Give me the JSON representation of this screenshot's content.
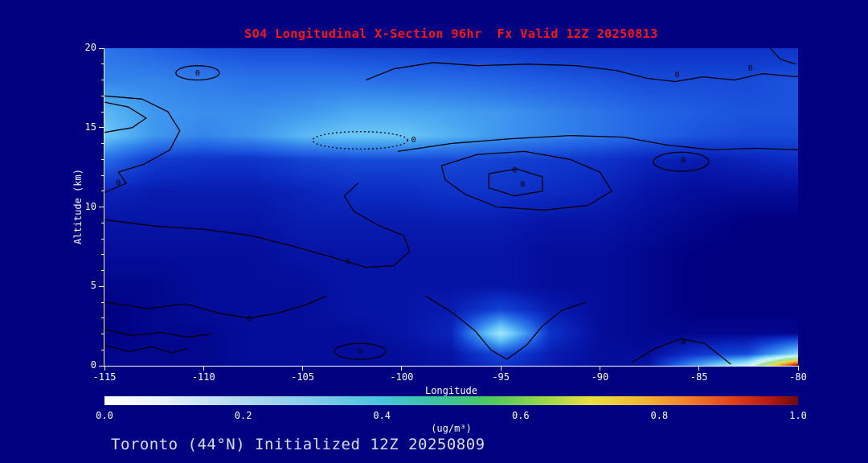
{
  "page": {
    "background": "#000080",
    "footer": "Toronto (44°N) Initialized 12Z 20250809",
    "footer_color": "#dcdcf8"
  },
  "chart_data": {
    "type": "heatmap",
    "title": "SO4 Longitudinal X-Section 96hr  Fx Valid 12Z 20250813",
    "title_color": "#ff1414",
    "xlabel": "Longitude",
    "ylabel": "Altitude (km)",
    "units": "(ug/m³)",
    "xlim": [
      -115,
      -80
    ],
    "ylim": [
      0,
      20
    ],
    "x_ticks": [
      -115,
      -110,
      -105,
      -100,
      -95,
      -90,
      -85,
      -80
    ],
    "y_ticks": [
      0,
      5,
      10,
      15,
      20
    ],
    "grid": false,
    "legend_position": "bottom-colorbar",
    "contour_label": "0",
    "contour_color": "#000000",
    "grid_lons": [
      -115,
      -112.5,
      -110,
      -107.5,
      -105,
      -102.5,
      -100,
      -97.5,
      -95,
      -92.5,
      -90,
      -87.5,
      -85,
      -82.5,
      -80
    ],
    "grid_alts": [
      0,
      0.7,
      2,
      3.5,
      5,
      7,
      9,
      11,
      13,
      14.5,
      16,
      18,
      20
    ],
    "values": [
      [
        0.07,
        0.07,
        0.07,
        0.08,
        0.08,
        0.08,
        0.08,
        0.09,
        0.13,
        0.1,
        0.08,
        0.09,
        0.26,
        0.42,
        0.96
      ],
      [
        0.07,
        0.07,
        0.07,
        0.08,
        0.08,
        0.08,
        0.08,
        0.09,
        0.16,
        0.1,
        0.08,
        0.08,
        0.13,
        0.16,
        0.34
      ],
      [
        0.06,
        0.07,
        0.07,
        0.08,
        0.08,
        0.08,
        0.09,
        0.11,
        0.38,
        0.13,
        0.08,
        0.07,
        0.07,
        0.07,
        0.07
      ],
      [
        0.06,
        0.07,
        0.08,
        0.08,
        0.08,
        0.09,
        0.09,
        0.1,
        0.15,
        0.1,
        0.08,
        0.07,
        0.06,
        0.06,
        0.06
      ],
      [
        0.07,
        0.07,
        0.08,
        0.08,
        0.08,
        0.09,
        0.09,
        0.09,
        0.09,
        0.08,
        0.08,
        0.07,
        0.06,
        0.06,
        0.06
      ],
      [
        0.08,
        0.08,
        0.08,
        0.08,
        0.09,
        0.09,
        0.09,
        0.09,
        0.09,
        0.08,
        0.08,
        0.07,
        0.06,
        0.06,
        0.06
      ],
      [
        0.09,
        0.09,
        0.09,
        0.09,
        0.1,
        0.1,
        0.1,
        0.1,
        0.1,
        0.09,
        0.09,
        0.08,
        0.07,
        0.06,
        0.06
      ],
      [
        0.11,
        0.1,
        0.1,
        0.1,
        0.11,
        0.12,
        0.12,
        0.13,
        0.13,
        0.12,
        0.11,
        0.09,
        0.08,
        0.08,
        0.08
      ],
      [
        0.2,
        0.14,
        0.13,
        0.13,
        0.15,
        0.16,
        0.16,
        0.16,
        0.15,
        0.14,
        0.13,
        0.11,
        0.1,
        0.11,
        0.12
      ],
      [
        0.31,
        0.25,
        0.23,
        0.25,
        0.29,
        0.31,
        0.31,
        0.28,
        0.25,
        0.23,
        0.21,
        0.19,
        0.17,
        0.16,
        0.16
      ],
      [
        0.29,
        0.25,
        0.24,
        0.24,
        0.25,
        0.27,
        0.27,
        0.26,
        0.25,
        0.23,
        0.21,
        0.19,
        0.18,
        0.17,
        0.17
      ],
      [
        0.23,
        0.23,
        0.22,
        0.21,
        0.21,
        0.21,
        0.2,
        0.2,
        0.19,
        0.18,
        0.17,
        0.16,
        0.16,
        0.16,
        0.17
      ],
      [
        0.21,
        0.19,
        0.17,
        0.16,
        0.16,
        0.15,
        0.15,
        0.14,
        0.14,
        0.13,
        0.13,
        0.13,
        0.13,
        0.13,
        0.13
      ]
    ],
    "fill_colormap": [
      [
        0.0,
        "#000074"
      ],
      [
        0.06,
        "#000080"
      ],
      [
        0.09,
        "#0614a6"
      ],
      [
        0.12,
        "#0c2cc4"
      ],
      [
        0.15,
        "#1342d2"
      ],
      [
        0.18,
        "#1f5ce2"
      ],
      [
        0.22,
        "#2f7cea"
      ],
      [
        0.26,
        "#45a0f0"
      ],
      [
        0.3,
        "#63c0f6"
      ],
      [
        0.35,
        "#8cdafa"
      ],
      [
        0.4,
        "#b4eefc"
      ],
      [
        0.48,
        "#d8f8ee"
      ],
      [
        0.56,
        "#8ee098"
      ],
      [
        0.66,
        "#dce856"
      ],
      [
        0.76,
        "#f2b436"
      ],
      [
        0.86,
        "#e65c22"
      ],
      [
        0.93,
        "#c62212"
      ],
      [
        1.0,
        "#6e0e08"
      ]
    ],
    "contours": [
      {
        "name": "upper-right-wave",
        "points": [
          [
            -101.8,
            18.0
          ],
          [
            -100.4,
            18.7
          ],
          [
            -98.4,
            19.1
          ],
          [
            -96.2,
            18.9
          ],
          [
            -93.6,
            19.0
          ],
          [
            -91.2,
            18.9
          ],
          [
            -89.2,
            18.6
          ],
          [
            -87.6,
            18.1
          ],
          [
            -86.2,
            17.9
          ],
          [
            -84.8,
            18.2
          ],
          [
            -83.2,
            18.0
          ],
          [
            -81.8,
            18.4
          ],
          [
            -80.0,
            18.2
          ]
        ],
        "labels": [
          [
            -86.1,
            18.35
          ],
          [
            -82.4,
            18.75
          ]
        ]
      },
      {
        "name": "top-right-corner",
        "points": [
          [
            -81.4,
            20.0
          ],
          [
            -80.9,
            19.3
          ],
          [
            -80.1,
            19.0
          ]
        ]
      },
      {
        "name": "upper-left-oval",
        "ellipse": [
          -110.3,
          18.45,
          1.1,
          0.45
        ],
        "labels": [
          [
            -110.3,
            18.45
          ]
        ]
      },
      {
        "name": "left-notch",
        "points": [
          [
            -115,
            16.6
          ],
          [
            -113.8,
            16.3
          ],
          [
            -112.9,
            15.6
          ],
          [
            -113.6,
            15.0
          ],
          [
            -115,
            14.7
          ]
        ]
      },
      {
        "name": "left-vertical",
        "points": [
          [
            -115,
            10.9
          ],
          [
            -113.9,
            11.5
          ],
          [
            -114.3,
            12.2
          ],
          [
            -113.0,
            12.7
          ],
          [
            -111.7,
            13.6
          ],
          [
            -111.2,
            14.8
          ],
          [
            -111.8,
            16.0
          ],
          [
            -113.1,
            16.8
          ],
          [
            -115,
            17.0
          ]
        ],
        "labels": [
          [
            -114.3,
            11.55
          ]
        ]
      },
      {
        "name": "band-dashed",
        "ellipse": [
          -102.1,
          14.2,
          2.4,
          0.55
        ],
        "dashed": true,
        "labels": [
          [
            -99.4,
            14.25
          ]
        ]
      },
      {
        "name": "band-edge-right",
        "points": [
          [
            -100.2,
            13.5
          ],
          [
            -97.5,
            14.0
          ],
          [
            -94.5,
            14.3
          ],
          [
            -91.5,
            14.5
          ],
          [
            -88.8,
            14.4
          ],
          [
            -86.6,
            13.9
          ],
          [
            -84.3,
            13.6
          ],
          [
            -82.2,
            13.7
          ],
          [
            -80,
            13.6
          ]
        ]
      },
      {
        "name": "right-small-oval",
        "ellipse": [
          -85.9,
          12.85,
          1.4,
          0.6
        ],
        "labels": [
          [
            -85.8,
            12.95
          ]
        ]
      },
      {
        "name": "big-mid-loop",
        "closed": true,
        "points": [
          [
            -98.0,
            12.6
          ],
          [
            -96.2,
            13.3
          ],
          [
            -93.8,
            13.5
          ],
          [
            -91.5,
            13.0
          ],
          [
            -90.0,
            12.2
          ],
          [
            -89.4,
            11.0
          ],
          [
            -90.6,
            10.1
          ],
          [
            -92.8,
            9.8
          ],
          [
            -95.2,
            10.0
          ],
          [
            -96.8,
            10.8
          ],
          [
            -97.8,
            11.7
          ]
        ],
        "labels": [
          [
            -94.3,
            12.35
          ]
        ]
      },
      {
        "name": "inner-loop",
        "closed": true,
        "points": [
          [
            -95.6,
            12.1
          ],
          [
            -94.2,
            12.4
          ],
          [
            -92.9,
            11.9
          ],
          [
            -92.9,
            11.0
          ],
          [
            -94.3,
            10.7
          ],
          [
            -95.6,
            11.2
          ]
        ],
        "labels": [
          [
            -93.9,
            11.45
          ]
        ]
      },
      {
        "name": "mid-squiggle",
        "points": [
          [
            -115,
            9.2
          ],
          [
            -112.5,
            8.8
          ],
          [
            -110.0,
            8.6
          ],
          [
            -107.6,
            8.2
          ],
          [
            -105.4,
            7.5
          ],
          [
            -103.4,
            6.8
          ],
          [
            -101.8,
            6.2
          ],
          [
            -100.4,
            6.3
          ],
          [
            -99.6,
            7.2
          ],
          [
            -99.9,
            8.2
          ],
          [
            -101.1,
            8.8
          ],
          [
            -102.4,
            9.7
          ],
          [
            -102.9,
            10.7
          ],
          [
            -102.2,
            11.5
          ]
        ],
        "labels": [
          [
            -102.7,
            6.55
          ]
        ]
      },
      {
        "name": "low-left-line",
        "points": [
          [
            -115,
            4.0
          ],
          [
            -112.8,
            3.6
          ],
          [
            -110.9,
            3.9
          ],
          [
            -109.2,
            3.3
          ],
          [
            -107.7,
            3.0
          ],
          [
            -106.3,
            3.3
          ],
          [
            -104.9,
            3.8
          ],
          [
            -103.8,
            4.4
          ]
        ],
        "labels": [
          [
            -107.7,
            2.95
          ]
        ]
      },
      {
        "name": "low-left-line2",
        "points": [
          [
            -115,
            2.3
          ],
          [
            -113.6,
            1.9
          ],
          [
            -112.2,
            2.1
          ],
          [
            -110.8,
            1.8
          ],
          [
            -109.6,
            2.0
          ]
        ]
      },
      {
        "name": "bottom-left-squiggle",
        "points": [
          [
            -115,
            1.3
          ],
          [
            -113.8,
            0.9
          ],
          [
            -112.6,
            1.2
          ],
          [
            -111.6,
            0.8
          ],
          [
            -110.8,
            1.1
          ]
        ]
      },
      {
        "name": "low-oval",
        "ellipse": [
          -102.1,
          0.9,
          1.3,
          0.5
        ],
        "labels": [
          [
            -102.1,
            0.9
          ]
        ]
      },
      {
        "name": "spot-v",
        "points": [
          [
            -98.8,
            4.4
          ],
          [
            -97.4,
            3.3
          ],
          [
            -96.3,
            2.2
          ],
          [
            -95.5,
            1.0
          ],
          [
            -94.7,
            0.4
          ],
          [
            -93.7,
            1.3
          ],
          [
            -92.9,
            2.5
          ],
          [
            -91.9,
            3.5
          ],
          [
            -90.7,
            4.0
          ]
        ]
      },
      {
        "name": "bottom-right-bump",
        "points": [
          [
            -88.4,
            0.2
          ],
          [
            -87.2,
            1.1
          ],
          [
            -85.9,
            1.7
          ],
          [
            -84.7,
            1.4
          ],
          [
            -83.9,
            0.6
          ],
          [
            -83.4,
            0.1
          ]
        ],
        "labels": [
          [
            -85.8,
            1.55
          ]
        ]
      }
    ],
    "colorbar": {
      "min": 0,
      "max": 1,
      "ticks": [
        "0.0",
        "0.2",
        "0.4",
        "0.6",
        "0.8",
        "1.0"
      ],
      "gradient": [
        [
          0,
          "#ffffff"
        ],
        [
          0.08,
          "#e8f4fc"
        ],
        [
          0.18,
          "#b8dcf4"
        ],
        [
          0.3,
          "#84ccec"
        ],
        [
          0.4,
          "#48c4dc"
        ],
        [
          0.48,
          "#38c49c"
        ],
        [
          0.56,
          "#50c85c"
        ],
        [
          0.64,
          "#a0d848"
        ],
        [
          0.7,
          "#e8e040"
        ],
        [
          0.78,
          "#f4b434"
        ],
        [
          0.85,
          "#f07828"
        ],
        [
          0.91,
          "#e03c18"
        ],
        [
          0.96,
          "#b41810"
        ],
        [
          1,
          "#6e0c08"
        ]
      ]
    }
  }
}
